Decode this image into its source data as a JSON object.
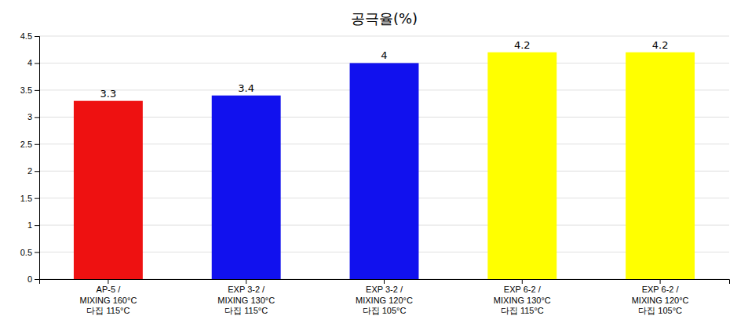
{
  "chart_data": {
    "type": "bar",
    "title": "공극율(%)",
    "categories": [
      "AP-5 /\nMIXING  160°C\n다집 115°C",
      "EXP 3-2 /\nMIXING  130°C\n다집 115°C",
      "EXP 3-2 /\nMIXING  120°C\n다집 105°C",
      "EXP 6-2 /\nMIXING  130°C\n다집 115°C",
      "EXP 6-2 /\nMIXING  120°C\n다집 105°C"
    ],
    "values": [
      3.3,
      3.4,
      4,
      4.2,
      4.2
    ],
    "colors": [
      "#ee1111",
      "#1111ee",
      "#1111ee",
      "#ffff00",
      "#ffff00"
    ],
    "ylim": [
      0,
      4.5
    ],
    "yticks": [
      0,
      0.5,
      1,
      1.5,
      2,
      2.5,
      3,
      3.5,
      4,
      4.5
    ],
    "grid": true,
    "data_labels": true
  }
}
